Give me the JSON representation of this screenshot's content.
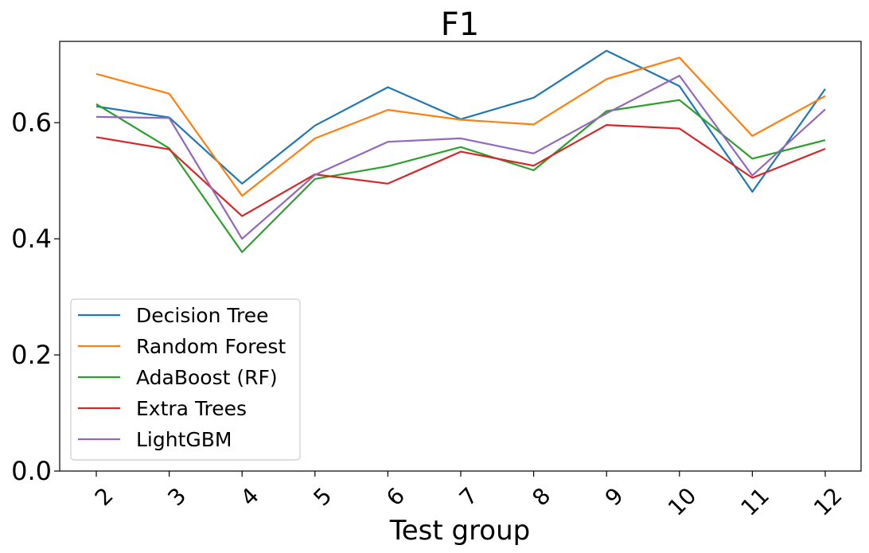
{
  "chart_data": {
    "type": "line",
    "title": "F1",
    "xlabel": "Test group",
    "ylabel": "",
    "categories": [
      "2",
      "3",
      "4",
      "5",
      "6",
      "7",
      "8",
      "9",
      "10",
      "11",
      "12"
    ],
    "ylim": [
      0,
      0.74
    ],
    "yticks": [
      "0.0",
      "0.2",
      "0.4",
      "0.6"
    ],
    "grid": false,
    "legend_position": "lower-left",
    "series": [
      {
        "name": "Decision Tree",
        "color": "#1f77b4",
        "values": [
          0.628,
          0.609,
          0.495,
          0.595,
          0.661,
          0.606,
          0.643,
          0.724,
          0.663,
          0.481,
          0.658
        ]
      },
      {
        "name": "Random Forest",
        "color": "#ff7f0e",
        "values": [
          0.684,
          0.65,
          0.474,
          0.573,
          0.622,
          0.605,
          0.597,
          0.675,
          0.712,
          0.577,
          0.646
        ]
      },
      {
        "name": "AdaBoost (RF)",
        "color": "#2ca02c",
        "values": [
          0.632,
          0.556,
          0.377,
          0.503,
          0.525,
          0.558,
          0.518,
          0.62,
          0.639,
          0.538,
          0.57
        ]
      },
      {
        "name": "Extra Trees",
        "color": "#d62728",
        "values": [
          0.575,
          0.554,
          0.439,
          0.511,
          0.495,
          0.55,
          0.526,
          0.596,
          0.59,
          0.505,
          0.555
        ]
      },
      {
        "name": "LightGBM",
        "color": "#9467bd",
        "values": [
          0.61,
          0.608,
          0.4,
          0.51,
          0.567,
          0.573,
          0.547,
          0.616,
          0.681,
          0.509,
          0.623
        ]
      }
    ]
  }
}
